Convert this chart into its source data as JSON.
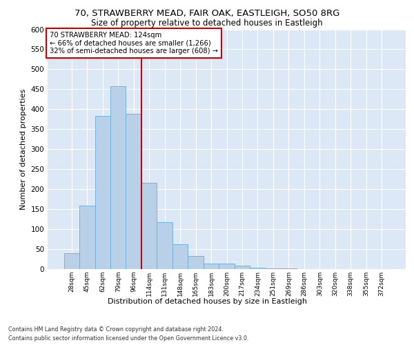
{
  "title_line1": "70, STRAWBERRY MEAD, FAIR OAK, EASTLEIGH, SO50 8RG",
  "title_line2": "Size of property relative to detached houses in Eastleigh",
  "xlabel": "Distribution of detached houses by size in Eastleigh",
  "ylabel": "Number of detached properties",
  "bin_labels": [
    "28sqm",
    "45sqm",
    "62sqm",
    "79sqm",
    "96sqm",
    "114sqm",
    "131sqm",
    "148sqm",
    "165sqm",
    "183sqm",
    "200sqm",
    "217sqm",
    "234sqm",
    "251sqm",
    "269sqm",
    "286sqm",
    "303sqm",
    "320sqm",
    "338sqm",
    "355sqm",
    "372sqm"
  ],
  "bar_values": [
    40,
    158,
    384,
    457,
    388,
    215,
    118,
    62,
    32,
    14,
    13,
    8,
    4,
    2,
    1,
    0,
    0,
    0,
    0,
    0,
    0
  ],
  "bar_color": "#b8d0e8",
  "bar_edge_color": "#6aaad4",
  "annotation_line1": "70 STRAWBERRY MEAD: 124sqm",
  "annotation_line2": "← 66% of detached houses are smaller (1,266)",
  "annotation_line3": "32% of semi-detached houses are larger (608) →",
  "vline_color": "#cc0000",
  "ylim": [
    0,
    600
  ],
  "yticks": [
    0,
    50,
    100,
    150,
    200,
    250,
    300,
    350,
    400,
    450,
    500,
    550,
    600
  ],
  "footnote1": "Contains HM Land Registry data © Crown copyright and database right 2024.",
  "footnote2": "Contains public sector information licensed under the Open Government Licence v3.0.",
  "fig_bg_color": "#ffffff",
  "plot_bg_color": "#dce8f5"
}
